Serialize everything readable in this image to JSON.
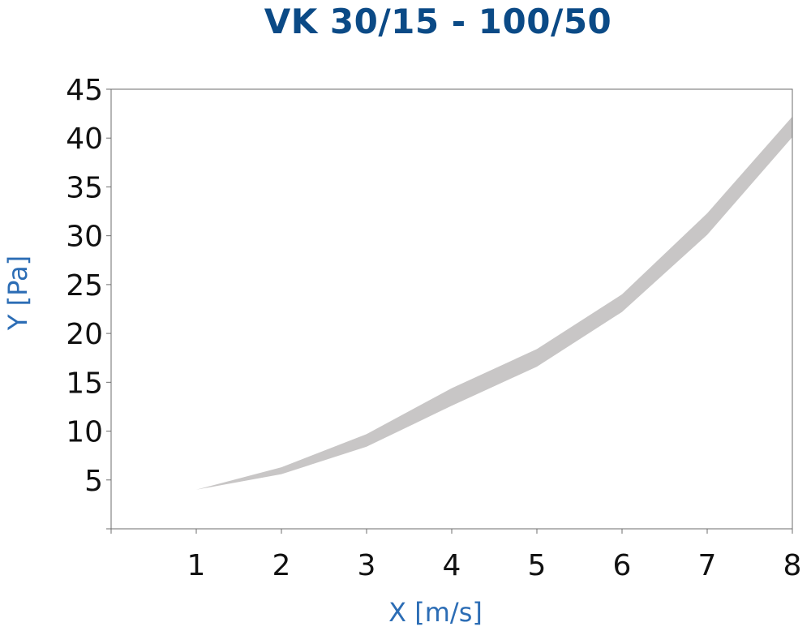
{
  "chart_data": {
    "type": "area",
    "title": "VK 30/15 - 100/50",
    "xlabel": "X [m/s]",
    "ylabel": "Y [Pa]",
    "xlim": [
      0,
      8
    ],
    "ylim": [
      0,
      45
    ],
    "xticks": [
      "1",
      "2",
      "3",
      "4",
      "5",
      "6",
      "7",
      "8"
    ],
    "yticks": [
      "5",
      "10",
      "15",
      "20",
      "25",
      "30",
      "35",
      "40",
      "45"
    ],
    "grid": false,
    "legend": "none",
    "band_color": "#c8c6c6",
    "title_color": "#0b4a86",
    "axis_label_color": "#2c6db5",
    "series": [
      {
        "x": [
          1,
          2,
          3,
          4,
          5,
          6,
          7,
          8
        ],
        "upper": [
          4.0,
          6.3,
          9.7,
          14.4,
          18.4,
          24.0,
          32.3,
          42.2
        ],
        "lower": [
          4.0,
          5.6,
          8.4,
          12.6,
          16.6,
          22.2,
          30.1,
          40.1
        ]
      }
    ]
  }
}
